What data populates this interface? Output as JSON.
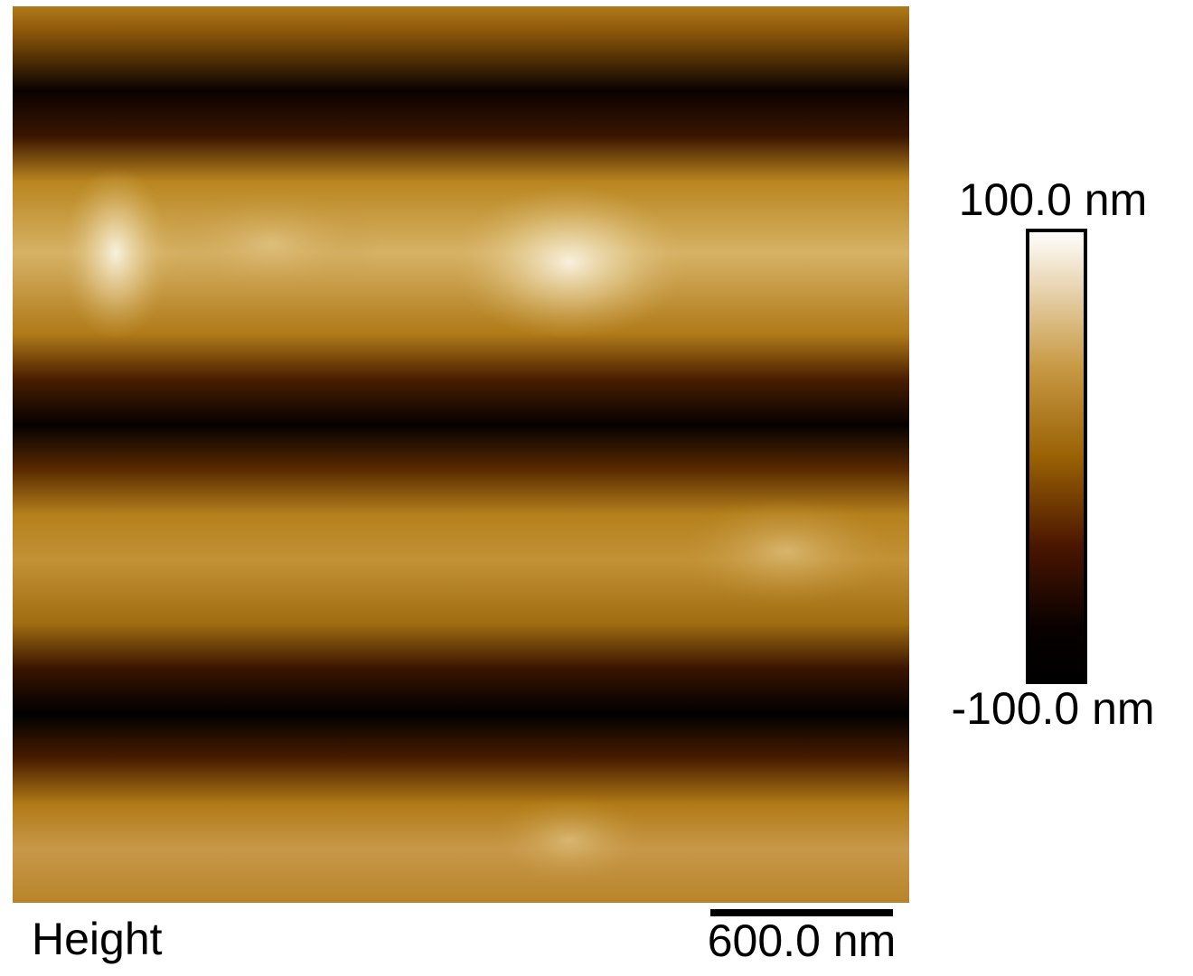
{
  "image": {
    "label": "Height",
    "scale_bar": "600.0 nm"
  },
  "colorbar": {
    "max": "100.0 nm",
    "min": "-100.0 nm"
  }
}
